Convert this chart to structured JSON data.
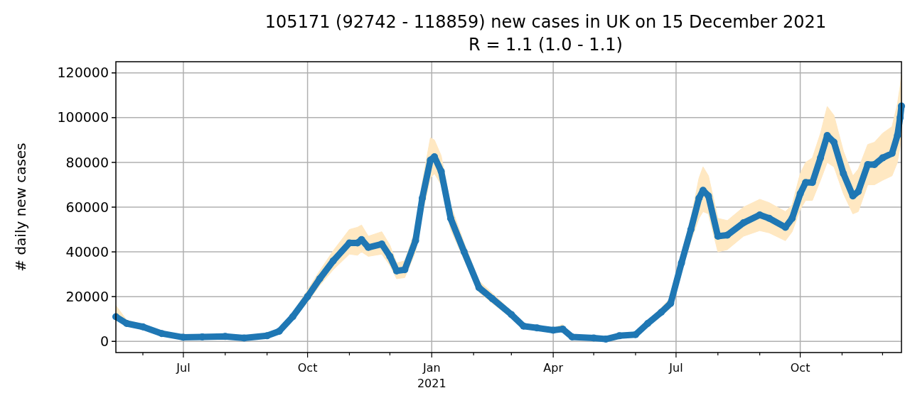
{
  "chart_data": {
    "type": "line",
    "title": "105171 (92742 - 118859) new cases in UK on 15 December 2021",
    "subtitle": "R = 1.1 (1.0 - 1.1)",
    "ylabel": "# daily new cases",
    "xlim": [
      "2020-05-12",
      "2021-12-15"
    ],
    "xticks": [
      {
        "value": "2020-06-01",
        "label": null
      },
      {
        "value": "2020-07-01",
        "label": "Jul"
      },
      {
        "value": "2020-08-01",
        "label": null
      },
      {
        "value": "2020-09-01",
        "label": null
      },
      {
        "value": "2020-10-01",
        "label": "Oct"
      },
      {
        "value": "2020-11-01",
        "label": null
      },
      {
        "value": "2020-12-01",
        "label": null
      },
      {
        "value": "2021-01-01",
        "label": "Jan\n2021"
      },
      {
        "value": "2021-02-01",
        "label": null
      },
      {
        "value": "2021-03-01",
        "label": null
      },
      {
        "value": "2021-04-01",
        "label": "Apr"
      },
      {
        "value": "2021-05-01",
        "label": null
      },
      {
        "value": "2021-06-01",
        "label": null
      },
      {
        "value": "2021-07-01",
        "label": "Jul"
      },
      {
        "value": "2021-08-01",
        "label": null
      },
      {
        "value": "2021-09-01",
        "label": null
      },
      {
        "value": "2021-10-01",
        "label": "Oct"
      },
      {
        "value": "2021-11-01",
        "label": null
      },
      {
        "value": "2021-12-01",
        "label": null
      }
    ],
    "ylim": [
      -5000,
      125000
    ],
    "yticks": [
      0,
      20000,
      40000,
      60000,
      80000,
      100000,
      120000
    ],
    "grid": true,
    "marker": "circle",
    "line_style": "solid",
    "series": [
      {
        "color": "#1f77b4",
        "x": [
          "2020-05-12",
          "2020-05-20",
          "2020-06-01",
          "2020-06-15",
          "2020-07-01",
          "2020-07-15",
          "2020-08-01",
          "2020-08-15",
          "2020-09-01",
          "2020-09-10",
          "2020-09-20",
          "2020-10-01",
          "2020-10-10",
          "2020-10-20",
          "2020-11-01",
          "2020-11-07",
          "2020-11-10",
          "2020-11-15",
          "2020-11-25",
          "2020-12-01",
          "2020-12-06",
          "2020-12-12",
          "2020-12-20",
          "2020-12-25",
          "2020-12-31",
          "2021-01-03",
          "2021-01-08",
          "2021-01-15",
          "2021-01-25",
          "2021-02-05",
          "2021-02-15",
          "2021-03-01",
          "2021-03-10",
          "2021-03-20",
          "2021-04-01",
          "2021-04-08",
          "2021-04-15",
          "2021-05-01",
          "2021-05-10",
          "2021-05-20",
          "2021-06-01",
          "2021-06-10",
          "2021-06-20",
          "2021-06-27",
          "2021-07-05",
          "2021-07-12",
          "2021-07-18",
          "2021-07-21",
          "2021-07-25",
          "2021-08-01",
          "2021-08-08",
          "2021-08-20",
          "2021-09-01",
          "2021-09-08",
          "2021-09-20",
          "2021-09-25",
          "2021-10-01",
          "2021-10-05",
          "2021-10-10",
          "2021-10-16",
          "2021-10-21",
          "2021-10-26",
          "2021-11-02",
          "2021-11-09",
          "2021-11-13",
          "2021-11-20",
          "2021-11-25",
          "2021-12-01",
          "2021-12-08",
          "2021-12-12",
          "2021-12-14",
          "2021-12-15"
        ],
        "values": [
          11000,
          8000,
          6500,
          3500,
          1800,
          2000,
          2200,
          1500,
          2500,
          4500,
          11000,
          20000,
          28000,
          36000,
          44000,
          44000,
          45500,
          42000,
          43500,
          38000,
          31500,
          32000,
          45000,
          64000,
          81000,
          82500,
          76000,
          55000,
          40000,
          24000,
          19000,
          12000,
          6800,
          6000,
          5000,
          5500,
          2000,
          1500,
          1000,
          2500,
          3000,
          8000,
          13000,
          17000,
          35000,
          50000,
          64000,
          67500,
          65000,
          47000,
          47500,
          53000,
          56500,
          55000,
          51000,
          55000,
          66000,
          71000,
          71000,
          82000,
          92000,
          89000,
          75000,
          65000,
          67000,
          79000,
          79000,
          82000,
          84000,
          92000,
          100000,
          105171
        ],
        "lower": [
          9500,
          7000,
          5500,
          3000,
          1500,
          1700,
          1900,
          1300,
          2200,
          4000,
          9500,
          17500,
          25000,
          32000,
          39000,
          38500,
          40000,
          38000,
          39000,
          34000,
          28000,
          28500,
          40000,
          57000,
          73000,
          75000,
          70000,
          50000,
          36500,
          22000,
          17000,
          10500,
          6000,
          5300,
          4400,
          4800,
          1700,
          1300,
          800,
          2200,
          2600,
          7000,
          11500,
          15000,
          31000,
          45000,
          55000,
          58000,
          57000,
          40000,
          41000,
          47000,
          49500,
          48500,
          45000,
          49000,
          59000,
          63000,
          63000,
          72000,
          80000,
          78000,
          66000,
          57000,
          58000,
          70000,
          70000,
          72000,
          74000,
          80000,
          87000,
          92742
        ],
        "upper": [
          16000,
          9500,
          7500,
          4200,
          2200,
          2500,
          2600,
          1900,
          2900,
          5200,
          12500,
          23000,
          31500,
          40500,
          50000,
          51000,
          52000,
          47000,
          49000,
          43000,
          35000,
          36000,
          50000,
          71000,
          91000,
          90000,
          83000,
          61000,
          44000,
          27000,
          21500,
          13500,
          7700,
          7000,
          6000,
          7500,
          2500,
          1800,
          1300,
          3000,
          3600,
          9200,
          15000,
          19500,
          39000,
          55000,
          73000,
          78000,
          74000,
          55000,
          54000,
          60000,
          63500,
          62000,
          58000,
          61000,
          75000,
          80000,
          82000,
          93000,
          105000,
          101000,
          85000,
          74000,
          77000,
          88000,
          89000,
          93000,
          96000,
          106000,
          114000,
          118859
        ]
      }
    ]
  }
}
